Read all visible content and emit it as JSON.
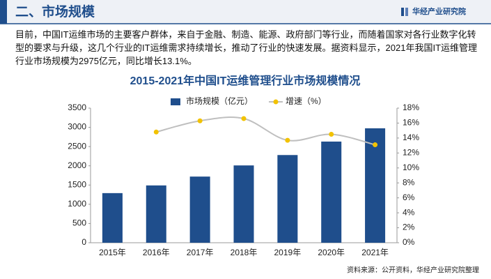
{
  "header": {
    "title": "二、市场规模",
    "brand": "华经产业研究院"
  },
  "paragraph": "目前，中国IT运维市场的主要客户群体，来自于金融、制造、能源、政府部门等行业，而随着国家对各行业数字化转型的要求与升级，这几个行业的IT运维需求持续增长，推动了行业的快速发展。据资料显示，2021年我国IT运维管理行业市场规模为2975亿元，同比增长13.1%。",
  "source": "资料来源：公开资料，华经产业研究院整理",
  "chart_data": {
    "type": "bar",
    "title": "2015-2021年中国IT运维管理行业市场规模情况",
    "categories": [
      "2015年",
      "2016年",
      "2017年",
      "2018年",
      "2019年",
      "2020年",
      "2021年"
    ],
    "series": [
      {
        "name": "市场规模（亿元）",
        "type": "bar",
        "color": "#1f4e8c",
        "values": [
          1290,
          1490,
          1720,
          2010,
          2280,
          2630,
          2975
        ]
      },
      {
        "name": "增速（%）",
        "type": "line",
        "axis": "y2",
        "color": "#f2c200",
        "line_color": "#bfbfbf",
        "values": [
          null,
          14.8,
          16.3,
          16.6,
          13.7,
          14.5,
          13.1
        ]
      }
    ],
    "ylim": [
      0,
      3500
    ],
    "yticks": [
      0,
      500,
      1000,
      1500,
      2000,
      2500,
      3000,
      3500
    ],
    "y2lim": [
      0,
      18
    ],
    "y2ticks": [
      {
        "value": 0,
        "label": "0%"
      },
      {
        "value": 2,
        "label": "2%"
      },
      {
        "value": 4,
        "label": "4%"
      },
      {
        "value": 6,
        "label": "6%"
      },
      {
        "value": 8,
        "label": "8%"
      },
      {
        "value": 10,
        "label": "10%"
      },
      {
        "value": 12,
        "label": "12%"
      },
      {
        "value": 14,
        "label": "14%"
      },
      {
        "value": 16,
        "label": "16%"
      },
      {
        "value": 18,
        "label": "18%"
      }
    ],
    "grid": false,
    "legend": "top"
  }
}
